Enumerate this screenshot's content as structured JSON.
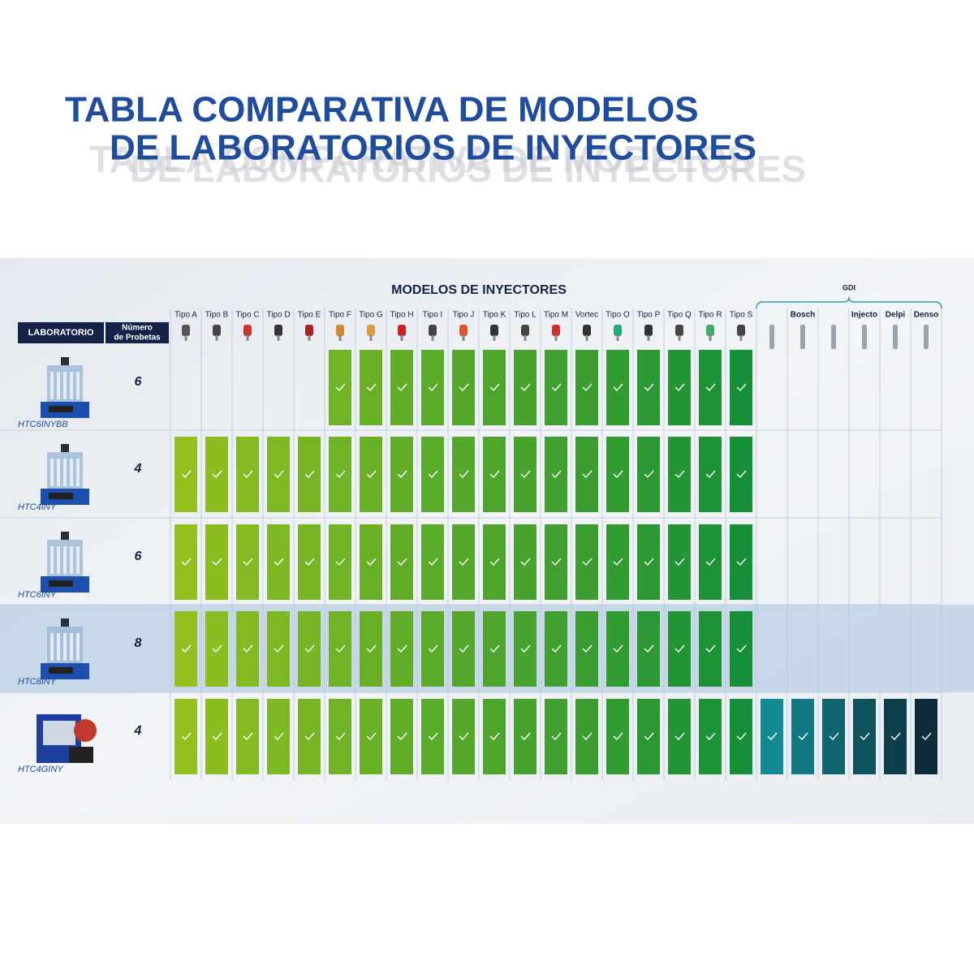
{
  "header": {
    "title_lines": [
      "TABLA COMPARATIVA DE MODELOS",
      "DE LABORATORIOS DE INYECTORES"
    ]
  },
  "table": {
    "section_title": "MODELOS DE INYECTORES",
    "gdi_title": "GDI",
    "lab_header": "LABORATORIO",
    "probes_header": [
      "Número",
      "de Probetas"
    ],
    "columns": [
      "Tipo A",
      "Tipo B",
      "Tipo C",
      "Tipo D",
      "Tipo E",
      "Tipo F",
      "Tipo G",
      "Tipo H",
      "Tipo I",
      "Tipo J",
      "Tipo K",
      "Tipo L",
      "Tipo M",
      "Vortec",
      "Tipo O",
      "Tipo P",
      "Tipo Q",
      "Tipo R",
      "Tipo S"
    ],
    "gdi_columns": [
      null,
      "Bosch",
      null,
      "Injecto",
      "Delpi",
      "Denso"
    ],
    "rows": [
      {
        "model": "HTC6INYBB",
        "probes": 6,
        "supports": [
          false,
          false,
          false,
          false,
          false,
          true,
          true,
          true,
          true,
          true,
          true,
          true,
          true,
          true,
          true,
          true,
          true,
          true,
          true
        ],
        "gdi_supports": [
          false,
          false,
          false,
          false,
          false,
          false
        ]
      },
      {
        "model": "HTC4INY",
        "probes": 4,
        "supports": [
          true,
          true,
          true,
          true,
          true,
          true,
          true,
          true,
          true,
          true,
          true,
          true,
          true,
          true,
          true,
          true,
          true,
          true,
          true
        ],
        "gdi_supports": [
          false,
          false,
          false,
          false,
          false,
          false
        ]
      },
      {
        "model": "HTC6INY",
        "probes": 6,
        "supports": [
          true,
          true,
          true,
          true,
          true,
          true,
          true,
          true,
          true,
          true,
          true,
          true,
          true,
          true,
          true,
          true,
          true,
          true,
          true
        ],
        "gdi_supports": [
          false,
          false,
          false,
          false,
          false,
          false
        ]
      },
      {
        "model": "HTC8INY",
        "probes": 8,
        "supports": [
          true,
          true,
          true,
          true,
          true,
          true,
          true,
          true,
          true,
          true,
          true,
          true,
          true,
          true,
          true,
          true,
          true,
          true,
          true
        ],
        "gdi_supports": [
          false,
          false,
          false,
          false,
          false,
          false
        ]
      },
      {
        "model": "HTC4GINY",
        "probes": 4,
        "supports": [
          true,
          true,
          true,
          true,
          true,
          true,
          true,
          true,
          true,
          true,
          true,
          true,
          true,
          true,
          true,
          true,
          true,
          true,
          true
        ],
        "gdi_supports": [
          true,
          true,
          true,
          true,
          true,
          true
        ]
      }
    ]
  }
}
